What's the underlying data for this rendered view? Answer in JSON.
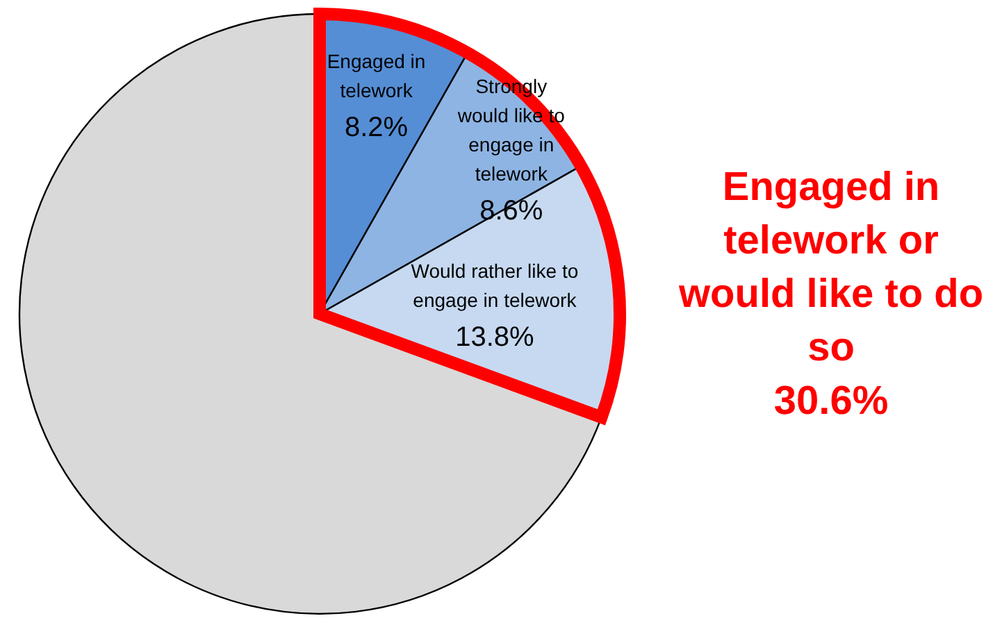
{
  "chart_data": {
    "type": "pie",
    "categories": [
      "Engaged in telework",
      "Strongly would like to engage in telework",
      "Would rather like to engage in telework",
      null
    ],
    "values": [
      8.2,
      8.6,
      13.8,
      69.4
    ],
    "colors": [
      "#558ed5",
      "#8eb4e3",
      "#c6d9f1",
      "#d9d9d9"
    ],
    "value_labels": [
      "8.2%",
      "8.6%",
      "13.8%",
      null
    ],
    "annotations": [
      "Engaged in telework or would like to do so\n30.6%"
    ]
  }
}
